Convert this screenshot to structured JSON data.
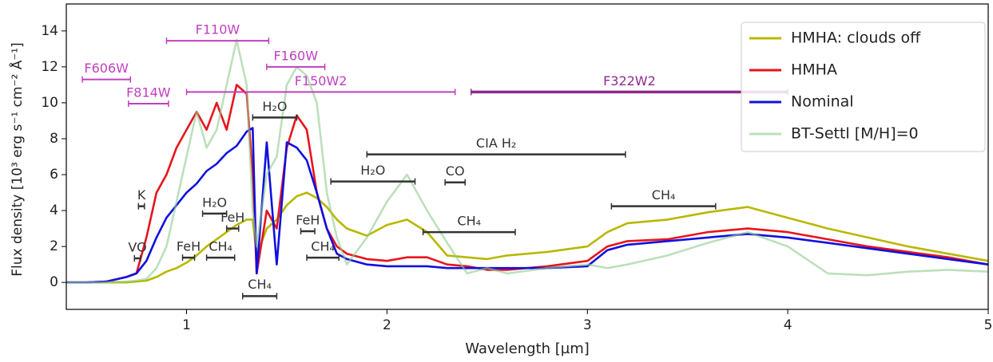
{
  "chart_data": {
    "type": "line",
    "xlabel": "Wavelength [µm]",
    "ylabel": "Flux density [10³ erg s⁻¹ cm⁻² Å⁻¹]",
    "xlim": [
      0.4,
      5
    ],
    "ylim": [
      -1.5,
      15.5
    ],
    "xticks": [
      1,
      2,
      3,
      4,
      5
    ],
    "yticks": [
      0,
      2,
      4,
      6,
      8,
      10,
      12,
      14
    ],
    "legend": "upper right",
    "x": [
      0.4,
      0.5,
      0.6,
      0.7,
      0.75,
      0.8,
      0.85,
      0.9,
      0.95,
      1.0,
      1.05,
      1.1,
      1.15,
      1.2,
      1.25,
      1.3,
      1.33,
      1.35,
      1.4,
      1.45,
      1.5,
      1.55,
      1.6,
      1.65,
      1.7,
      1.75,
      1.8,
      1.9,
      2.0,
      2.1,
      2.2,
      2.3,
      2.4,
      2.5,
      2.6,
      2.8,
      3.0,
      3.1,
      3.2,
      3.4,
      3.6,
      3.8,
      4.0,
      4.2,
      4.4,
      4.6,
      4.8,
      5.0
    ],
    "series": [
      {
        "name": "HMHA: clouds off",
        "color": "#b8b800",
        "values": [
          0,
          0,
          0,
          0,
          0.05,
          0.1,
          0.3,
          0.6,
          0.8,
          1.1,
          1.5,
          2.0,
          2.4,
          2.8,
          3.2,
          3.5,
          3.5,
          1.5,
          3,
          3.5,
          4.3,
          4.8,
          5.0,
          4.7,
          4.2,
          3.5,
          3,
          2.6,
          3.2,
          3.5,
          2.8,
          1.5,
          1.4,
          1.3,
          1.5,
          1.7,
          2.0,
          2.8,
          3.3,
          3.5,
          3.9,
          4.2,
          3.6,
          3.0,
          2.5,
          2.0,
          1.6,
          1.2
        ]
      },
      {
        "name": "HMHA",
        "color": "#e8141c",
        "values": [
          0,
          0,
          0.05,
          0.3,
          0.5,
          2.5,
          5,
          6,
          7.5,
          8.5,
          9.5,
          8.5,
          10,
          8.5,
          11,
          10.5,
          6,
          0.5,
          4,
          3,
          7.5,
          9.3,
          8.5,
          5,
          3,
          2,
          1.6,
          1.3,
          1.2,
          1.4,
          1.4,
          1.0,
          0.9,
          0.7,
          0.7,
          0.9,
          1.2,
          2.0,
          2.3,
          2.4,
          2.8,
          3.0,
          2.8,
          2.4,
          2.0,
          1.7,
          1.4,
          1.0
        ]
      },
      {
        "name": "Nominal",
        "color": "#1010e0",
        "values": [
          0,
          0,
          0.05,
          0.3,
          0.5,
          1.2,
          2.5,
          3.6,
          4.3,
          5,
          5.5,
          6.2,
          6.6,
          7.2,
          7.6,
          8.4,
          8.6,
          0.5,
          7.8,
          1,
          7.8,
          7.5,
          6.8,
          5,
          3,
          1.6,
          1.3,
          1.0,
          0.9,
          0.9,
          0.9,
          0.8,
          0.8,
          0.8,
          0.8,
          0.8,
          0.9,
          1.8,
          2.1,
          2.3,
          2.5,
          2.7,
          2.5,
          2.2,
          1.9,
          1.6,
          1.3,
          1.0
        ]
      },
      {
        "name": "BT-Settl [M/H]=0",
        "color": "#8fcc8f",
        "values": [
          0,
          0,
          0,
          0.05,
          0.1,
          0.2,
          0.8,
          2,
          4.5,
          7,
          9.5,
          7.5,
          8.5,
          11,
          13.5,
          11,
          4,
          2,
          6,
          7,
          11,
          12,
          11.5,
          10,
          5,
          2.5,
          1,
          2.5,
          4.5,
          6,
          4,
          2.2,
          0.5,
          0.8,
          0.5,
          0.8,
          1.0,
          0.8,
          1.0,
          1.5,
          2.2,
          2.8,
          2.0,
          0.5,
          0.4,
          0.6,
          0.7,
          0.6
        ]
      }
    ],
    "annotations": [
      {
        "label": "F606W",
        "x": [
          0.48,
          0.72
        ],
        "y": 11.3,
        "color": "#c040c0"
      },
      {
        "label": "F814W",
        "x": [
          0.71,
          0.91
        ],
        "y": 9.95,
        "color": "#c040c0"
      },
      {
        "label": "F110W",
        "x": [
          0.9,
          1.41
        ],
        "y": 13.45,
        "color": "#c040c0"
      },
      {
        "label": "F160W",
        "x": [
          1.4,
          1.69
        ],
        "y": 12.0,
        "color": "#c040c0"
      },
      {
        "label": "F150W2",
        "x": [
          1.0,
          2.34
        ],
        "y": 10.6,
        "color": "#c040c0"
      },
      {
        "label": "F322W2",
        "x": [
          2.42,
          4.0
        ],
        "y": 10.6,
        "color": "#8e2a8e"
      },
      {
        "label": "CIA H₂",
        "x": [
          1.9,
          3.19
        ],
        "y": 7.13,
        "color": "#333333"
      },
      {
        "label": "H₂O",
        "x": [
          1.33,
          1.55
        ],
        "y": 9.18,
        "color": "#333333"
      },
      {
        "label": "H₂O",
        "x": [
          1.72,
          2.14
        ],
        "y": 5.62,
        "color": "#333333"
      },
      {
        "label": "CO",
        "x": [
          2.29,
          2.39
        ],
        "y": 5.57,
        "color": "#333333"
      },
      {
        "label": "CH₄",
        "x": [
          3.12,
          3.64
        ],
        "y": 4.24,
        "color": "#333333"
      },
      {
        "label": "K",
        "x": [
          0.76,
          0.79
        ],
        "y": 4.24,
        "color": "#333333"
      },
      {
        "label": "H₂O",
        "x": [
          1.08,
          1.2
        ],
        "y": 3.83,
        "color": "#333333"
      },
      {
        "label": "FeH",
        "x": [
          1.2,
          1.26
        ],
        "y": 3.0,
        "color": "#333333"
      },
      {
        "label": "FeH",
        "x": [
          1.57,
          1.64
        ],
        "y": 2.85,
        "color": "#333333"
      },
      {
        "label": "CH₄",
        "x": [
          2.18,
          2.64
        ],
        "y": 2.8,
        "color": "#333333"
      },
      {
        "label": "VO",
        "x": [
          0.74,
          0.77
        ],
        "y": 1.34,
        "color": "#333333"
      },
      {
        "label": "FeH",
        "x": [
          0.98,
          1.04
        ],
        "y": 1.38,
        "color": "#333333"
      },
      {
        "label": "CH₄",
        "x": [
          1.1,
          1.24
        ],
        "y": 1.38,
        "color": "#333333"
      },
      {
        "label": "CH₄",
        "x": [
          1.6,
          1.76
        ],
        "y": 1.38,
        "color": "#333333"
      },
      {
        "label": "CH₄",
        "x": [
          1.28,
          1.45
        ],
        "y": -0.76,
        "color": "#333333"
      }
    ]
  }
}
